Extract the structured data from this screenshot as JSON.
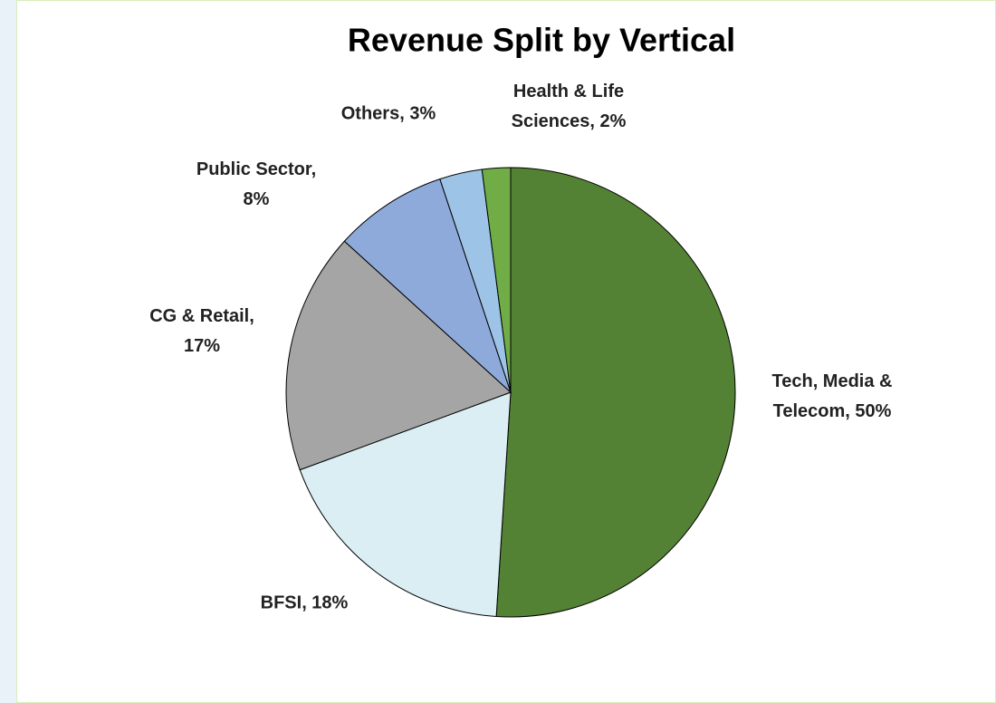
{
  "chart_data": {
    "type": "pie",
    "title": "Revenue Split by Vertical",
    "values": [
      50,
      18,
      17,
      8,
      3,
      2
    ],
    "value_labels": [
      "Tech, Media & Telecom, 50%",
      "BFSI, 18%",
      "CG & Retail, 17%",
      "Public Sector, 8%",
      "Others, 3%",
      "Health & Life Sciences, 2%"
    ],
    "colors": [
      "#548235",
      "#daeef3",
      "#a5a5a5",
      "#8eaadb",
      "#9dc3e6",
      "#70ad47"
    ]
  }
}
